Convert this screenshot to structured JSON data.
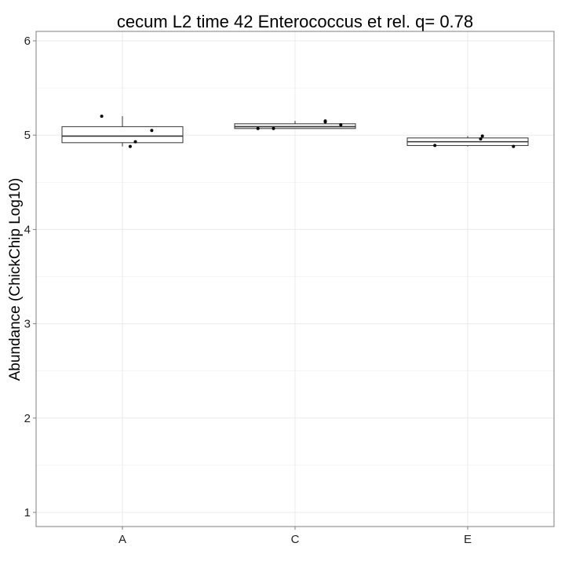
{
  "chart_data": {
    "type": "boxplot",
    "title": "cecum L2 time 42 Enterococcus et rel. q= 0.78",
    "xlabel": "",
    "ylabel": "Abundance (ChickChip Log10)",
    "ylim": [
      0.85,
      6.1
    ],
    "yticks": [
      1,
      2,
      3,
      4,
      5,
      6
    ],
    "categories": [
      "A",
      "C",
      "E"
    ],
    "grid": true,
    "legend": "none",
    "boxes": [
      {
        "category": "A",
        "lower_whisker": 4.88,
        "q1": 4.92,
        "median": 4.99,
        "q3": 5.09,
        "upper_whisker": 5.2
      },
      {
        "category": "C",
        "lower_whisker": 5.07,
        "q1": 5.07,
        "median": 5.09,
        "q3": 5.12,
        "upper_whisker": 5.15
      },
      {
        "category": "E",
        "lower_whisker": 4.88,
        "q1": 4.89,
        "median": 4.93,
        "q3": 4.97,
        "upper_whisker": 4.99
      }
    ],
    "points": [
      {
        "category": "A",
        "y": 5.2,
        "jitter": -0.24
      },
      {
        "category": "A",
        "y": 4.88,
        "jitter": 0.09
      },
      {
        "category": "A",
        "y": 4.93,
        "jitter": 0.15
      },
      {
        "category": "A",
        "y": 5.05,
        "jitter": 0.34
      },
      {
        "category": "C",
        "y": 5.07,
        "jitter": -0.43
      },
      {
        "category": "C",
        "y": 5.07,
        "jitter": -0.25
      },
      {
        "category": "C",
        "y": 5.15,
        "jitter": 0.35
      },
      {
        "category": "C",
        "y": 5.14,
        "jitter": 0.35
      },
      {
        "category": "C",
        "y": 5.11,
        "jitter": 0.53
      },
      {
        "category": "E",
        "y": 4.89,
        "jitter": -0.38
      },
      {
        "category": "E",
        "y": 4.96,
        "jitter": 0.15
      },
      {
        "category": "E",
        "y": 4.99,
        "jitter": 0.17
      },
      {
        "category": "E",
        "y": 4.88,
        "jitter": 0.53
      }
    ],
    "colors": {
      "panel_border": "#7f7f7f",
      "grid": "#ebebeb",
      "box": "#333333",
      "point": "#000000"
    }
  }
}
